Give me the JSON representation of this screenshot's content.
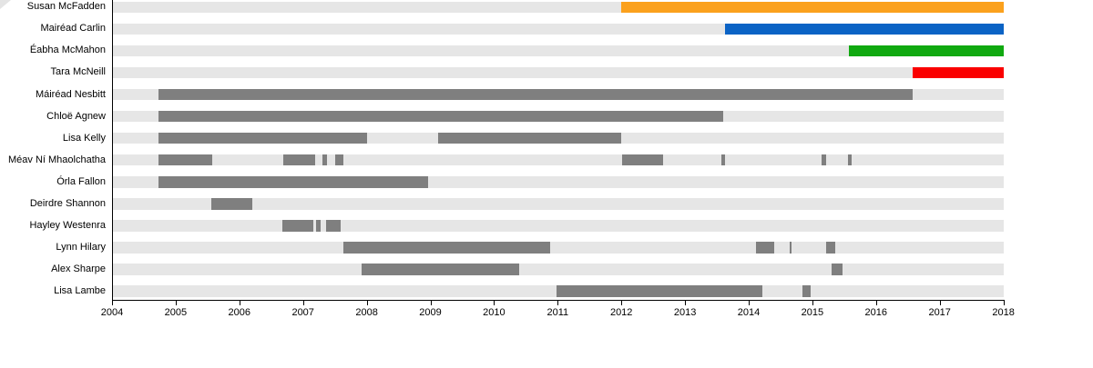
{
  "chart_data": {
    "type": "gantt",
    "description": "Membership timeline bar chart, one row per person, x axis in years",
    "x_axis": {
      "min": 2004,
      "max": 2018,
      "tick_step": 1,
      "tick_labels": [
        "2004",
        "2005",
        "2006",
        "2007",
        "2008",
        "2009",
        "2010",
        "2011",
        "2012",
        "2013",
        "2014",
        "2015",
        "2016",
        "2017",
        "2018"
      ]
    },
    "grid": false,
    "legend": false,
    "track_color": "#E6E6E6",
    "bar_colors": {
      "gray": "#7F7F7F",
      "orange": "#FBA11D",
      "blue": "#0B63C5",
      "green": "#10A910",
      "red": "#FA0000"
    },
    "rows": [
      {
        "label": "Susan McFadden",
        "segments": [
          [
            2012.0,
            2018.0,
            "orange"
          ]
        ]
      },
      {
        "label": "Mairéad Carlin",
        "segments": [
          [
            2013.63,
            2018.0,
            "blue"
          ]
        ]
      },
      {
        "label": "Éabha McMahon",
        "segments": [
          [
            2015.58,
            2018.0,
            "green"
          ]
        ]
      },
      {
        "label": "Tara McNeill",
        "segments": [
          [
            2016.57,
            2018.0,
            "red"
          ]
        ]
      },
      {
        "label": "Máiréad Nesbitt",
        "segments": [
          [
            2004.73,
            2016.57,
            "gray"
          ]
        ]
      },
      {
        "label": "Chloë Agnew",
        "segments": [
          [
            2004.73,
            2013.6,
            "gray"
          ]
        ]
      },
      {
        "label": "Lisa Kelly",
        "segments": [
          [
            2004.73,
            2008.0,
            "gray"
          ],
          [
            2009.12,
            2012.0,
            "gray"
          ]
        ]
      },
      {
        "label": "Méav Ní Mhaolchatha",
        "segments": [
          [
            2004.73,
            2005.58,
            "gray"
          ],
          [
            2006.69,
            2007.19,
            "gray"
          ],
          [
            2007.3,
            2007.37,
            "gray"
          ],
          [
            2007.5,
            2007.64,
            "gray"
          ],
          [
            2012.01,
            2012.65,
            "gray"
          ],
          [
            2013.57,
            2013.63,
            "gray"
          ],
          [
            2015.15,
            2015.22,
            "gray"
          ],
          [
            2015.56,
            2015.61,
            "gray"
          ]
        ]
      },
      {
        "label": "Órla Fallon",
        "segments": [
          [
            2004.73,
            2008.96,
            "gray"
          ]
        ]
      },
      {
        "label": "Deirdre Shannon",
        "segments": [
          [
            2005.56,
            2006.2,
            "gray"
          ]
        ]
      },
      {
        "label": "Hayley Westenra",
        "segments": [
          [
            2006.67,
            2007.16,
            "gray"
          ],
          [
            2007.2,
            2007.27,
            "gray"
          ],
          [
            2007.36,
            2007.59,
            "gray"
          ]
        ]
      },
      {
        "label": "Lynn Hilary",
        "segments": [
          [
            2007.63,
            2010.88,
            "gray"
          ],
          [
            2014.12,
            2014.4,
            "gray"
          ],
          [
            2014.64,
            2014.67,
            "gray"
          ],
          [
            2015.22,
            2015.36,
            "gray"
          ]
        ]
      },
      {
        "label": "Alex Sharpe",
        "segments": [
          [
            2007.92,
            2010.4,
            "gray"
          ],
          [
            2015.3,
            2015.47,
            "gray"
          ]
        ]
      },
      {
        "label": "Lisa Lambe",
        "segments": [
          [
            2010.98,
            2014.22,
            "gray"
          ],
          [
            2014.85,
            2014.98,
            "gray"
          ]
        ]
      }
    ]
  }
}
